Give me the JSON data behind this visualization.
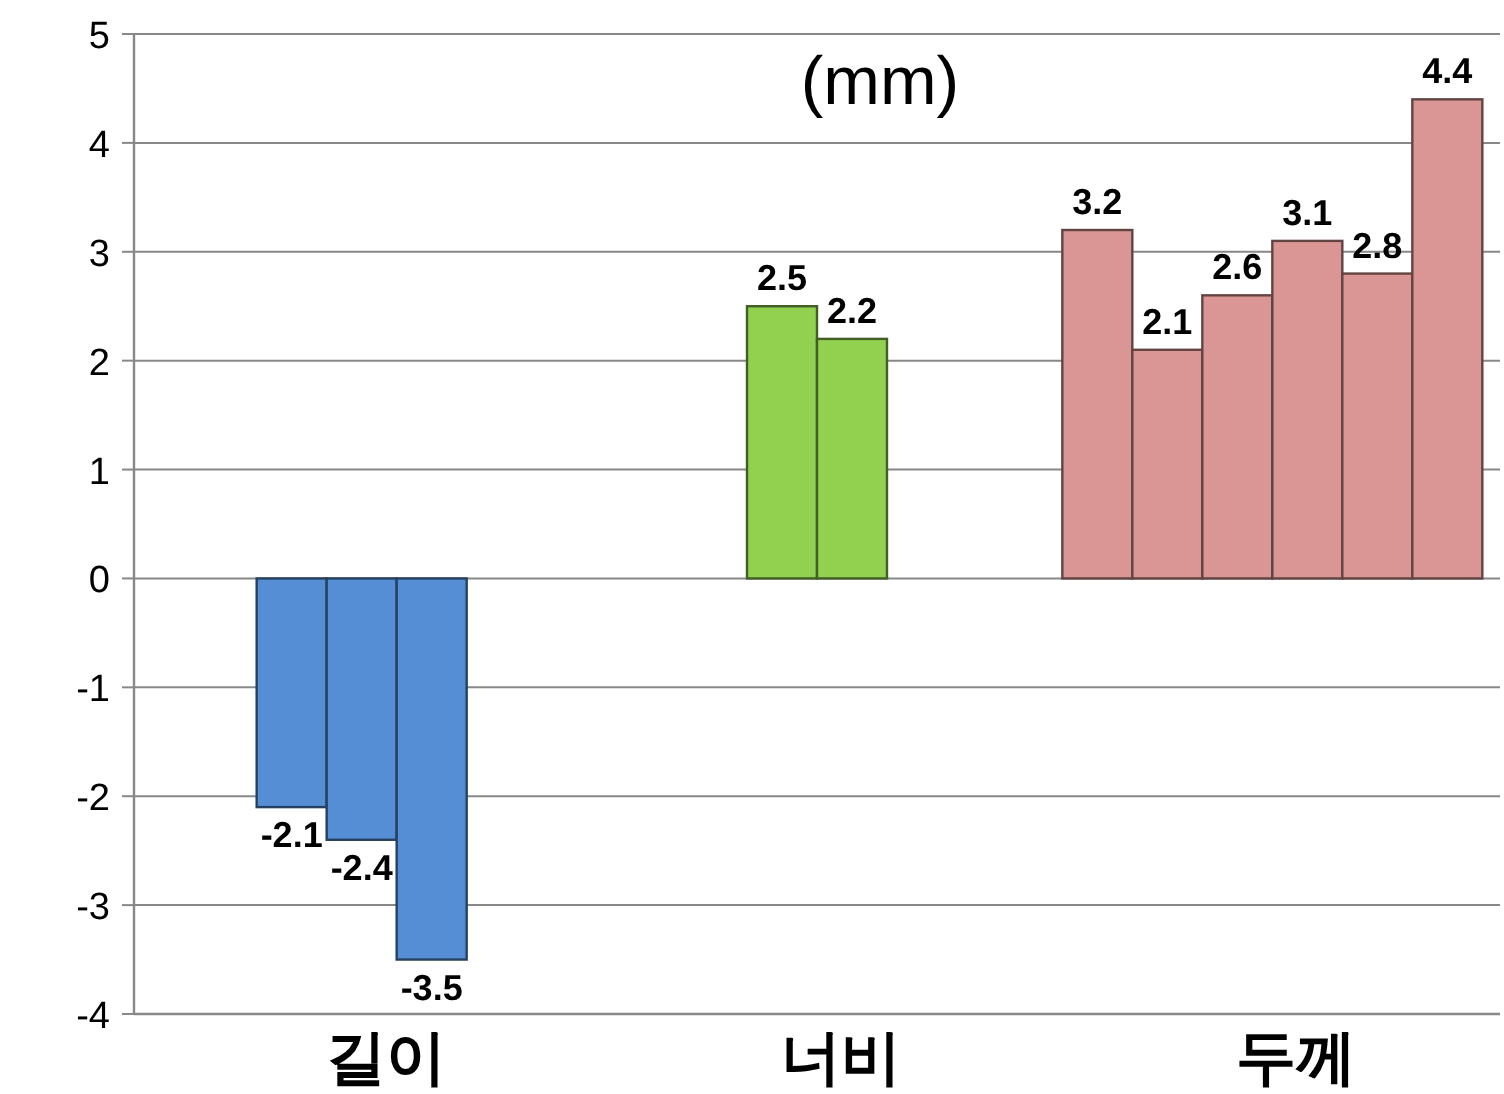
{
  "chart_data": {
    "type": "bar",
    "title": "(mm)",
    "categories": [
      "길이",
      "너비",
      "두께"
    ],
    "ylim": [
      -4,
      5
    ],
    "yticks": [
      -4,
      -3,
      -2,
      -1,
      0,
      1,
      2,
      3,
      4,
      5
    ],
    "grid": "y",
    "data_labels": true,
    "series": [
      {
        "values": [
          -2.1,
          2.5,
          3.2
        ],
        "colors": [
          "#558ed5",
          "#92d050",
          "#d99694"
        ]
      },
      {
        "values": [
          -2.4,
          2.2,
          2.1
        ],
        "colors": [
          "#558ed5",
          "#92d050",
          "#d99694"
        ]
      },
      {
        "values": [
          -3.5,
          null,
          2.6
        ],
        "colors": [
          "#558ed5",
          null,
          "#d99694"
        ]
      },
      {
        "values": [
          null,
          null,
          3.1
        ],
        "colors": [
          null,
          null,
          "#d99694"
        ]
      },
      {
        "values": [
          null,
          null,
          2.8
        ],
        "colors": [
          null,
          null,
          "#d99694"
        ]
      },
      {
        "values": [
          null,
          null,
          4.4
        ],
        "colors": [
          null,
          null,
          "#d99694"
        ]
      }
    ]
  }
}
